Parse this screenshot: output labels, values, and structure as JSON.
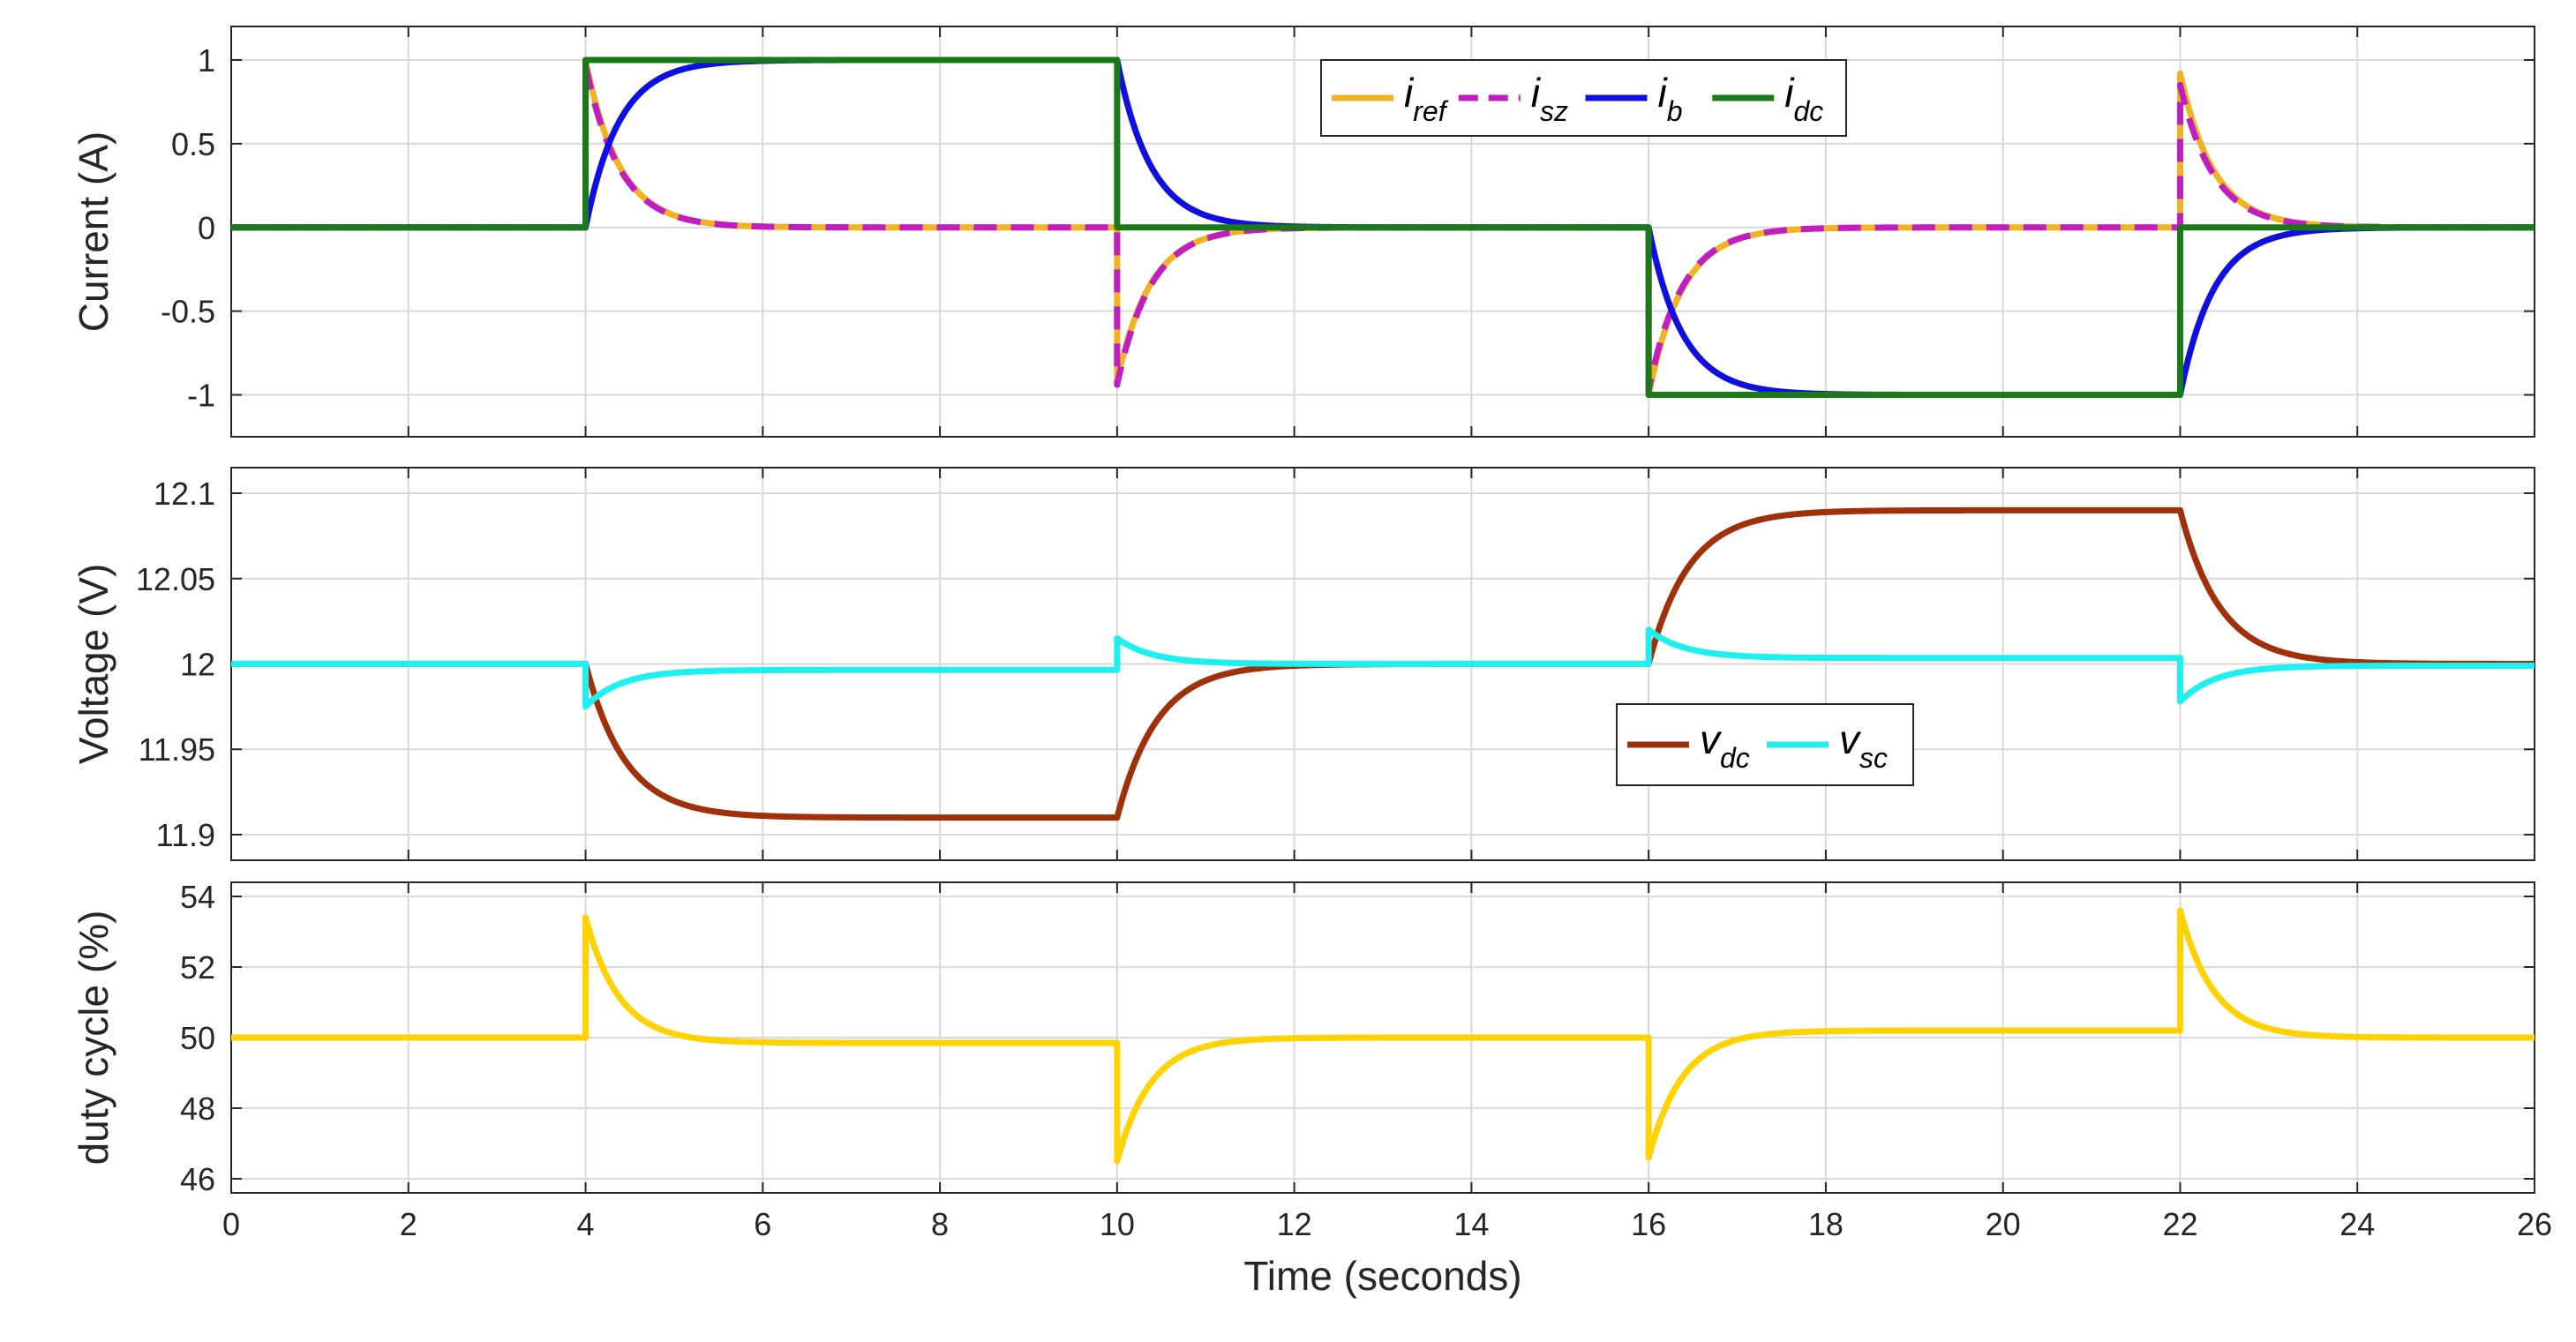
{
  "chart_data": [
    {
      "type": "line",
      "ylabel": "Current (A)",
      "xlabel": "",
      "xlim": [
        0,
        26
      ],
      "ylim": [
        -1.25,
        1.2
      ],
      "x_ticks": [
        "0",
        "2",
        "4",
        "6",
        "8",
        "10",
        "12",
        "14",
        "16",
        "18",
        "20",
        "22",
        "24",
        "26"
      ],
      "y_ticks": [
        "-1",
        "-0.5",
        "0",
        "0.5",
        "1"
      ],
      "grid": true,
      "legend": {
        "placement": "top-center",
        "orientation": "horizontal",
        "entries": [
          {
            "symbol": "i",
            "sub": "ref"
          },
          {
            "symbol": "i",
            "sub": "sz"
          },
          {
            "symbol": "i",
            "sub": "b"
          },
          {
            "symbol": "i",
            "sub": "dc"
          }
        ]
      },
      "series": [
        {
          "name": "i_ref",
          "color": "#f0b323",
          "dash": "solid",
          "shape": "transients",
          "baseline": 0,
          "events": [
            {
              "t": 4,
              "peak": 1.0,
              "tau": 0.38
            },
            {
              "t": 10,
              "peak": -0.92,
              "tau": 0.38
            },
            {
              "t": 16,
              "peak": -1.0,
              "tau": 0.38
            },
            {
              "t": 22,
              "peak": 0.92,
              "tau": 0.38
            }
          ]
        },
        {
          "name": "i_sz",
          "color": "#c01ec0",
          "dash": "dashed",
          "shape": "transients",
          "baseline": 0,
          "events": [
            {
              "t": 4,
              "peak": 0.97,
              "tau": 0.38
            },
            {
              "t": 10,
              "peak": -0.94,
              "tau": 0.38
            },
            {
              "t": 16,
              "peak": -0.97,
              "tau": 0.38
            },
            {
              "t": 22,
              "peak": 0.85,
              "tau": 0.38
            }
          ]
        },
        {
          "name": "i_b",
          "color": "#0f0fe0",
          "dash": "solid",
          "shape": "first-order",
          "initial": 0,
          "tau": 0.38,
          "steps": [
            {
              "t": 4,
              "level": 1.0
            },
            {
              "t": 10,
              "level": 0
            },
            {
              "t": 16,
              "level": -1.0
            },
            {
              "t": 22,
              "level": 0
            }
          ]
        },
        {
          "name": "i_dc",
          "color": "#1a7a1a",
          "dash": "solid",
          "shape": "step",
          "initial": 0,
          "steps": [
            {
              "t": 4,
              "level": 1.0
            },
            {
              "t": 10,
              "level": 0
            },
            {
              "t": 16,
              "level": -1.0
            },
            {
              "t": 22,
              "level": 0
            }
          ]
        }
      ]
    },
    {
      "type": "line",
      "ylabel": "Voltage (V)",
      "xlabel": "",
      "xlim": [
        0,
        26
      ],
      "ylim": [
        11.885,
        12.115
      ],
      "x_ticks": [
        "0",
        "2",
        "4",
        "6",
        "8",
        "10",
        "12",
        "14",
        "16",
        "18",
        "20",
        "22",
        "24",
        "26"
      ],
      "y_ticks": [
        "11.9",
        "11.95",
        "12",
        "12.05",
        "12.1"
      ],
      "grid": true,
      "legend": {
        "placement": "center-right",
        "orientation": "horizontal",
        "entries": [
          {
            "symbol": "v",
            "sub": "dc"
          },
          {
            "symbol": "v",
            "sub": "sc"
          }
        ]
      },
      "series": [
        {
          "name": "v_dc",
          "color": "#a0300a",
          "dash": "solid",
          "shape": "first-order",
          "initial": 12.0,
          "tau": 0.45,
          "steps": [
            {
              "t": 4,
              "level": 11.91
            },
            {
              "t": 10,
              "level": 12.0
            },
            {
              "t": 16,
              "level": 12.09
            },
            {
              "t": 22,
              "level": 12.0
            }
          ]
        },
        {
          "name": "v_sc",
          "color": "#1ef0f0",
          "dash": "solid",
          "shape": "jump-recover",
          "initial": 12.0,
          "tau": 0.4,
          "events": [
            {
              "t": 4,
              "jump": 11.975,
              "settle": 11.9965
            },
            {
              "t": 10,
              "jump": 12.015,
              "settle": 12.0
            },
            {
              "t": 16,
              "jump": 12.02,
              "settle": 12.0035
            },
            {
              "t": 22,
              "jump": 11.978,
              "settle": 11.999
            }
          ]
        }
      ]
    },
    {
      "type": "line",
      "ylabel": "duty cycle (%)",
      "xlabel": "Time (seconds)",
      "xlim": [
        0,
        26
      ],
      "ylim": [
        45.6,
        54.4
      ],
      "x_ticks": [
        "0",
        "2",
        "4",
        "6",
        "8",
        "10",
        "12",
        "14",
        "16",
        "18",
        "20",
        "22",
        "24",
        "26"
      ],
      "y_ticks": [
        "46",
        "48",
        "50",
        "52",
        "54"
      ],
      "grid": true,
      "series": [
        {
          "name": "duty",
          "color": "#ffd200",
          "dash": "solid",
          "shape": "jump-recover",
          "initial": 50.0,
          "tau": 0.38,
          "events": [
            {
              "t": 4,
              "jump": 53.4,
              "settle": 49.85
            },
            {
              "t": 10,
              "jump": 46.5,
              "settle": 50.0
            },
            {
              "t": 16,
              "jump": 46.6,
              "settle": 50.2
            },
            {
              "t": 22,
              "jump": 53.6,
              "settle": 50.0
            }
          ]
        }
      ]
    }
  ]
}
